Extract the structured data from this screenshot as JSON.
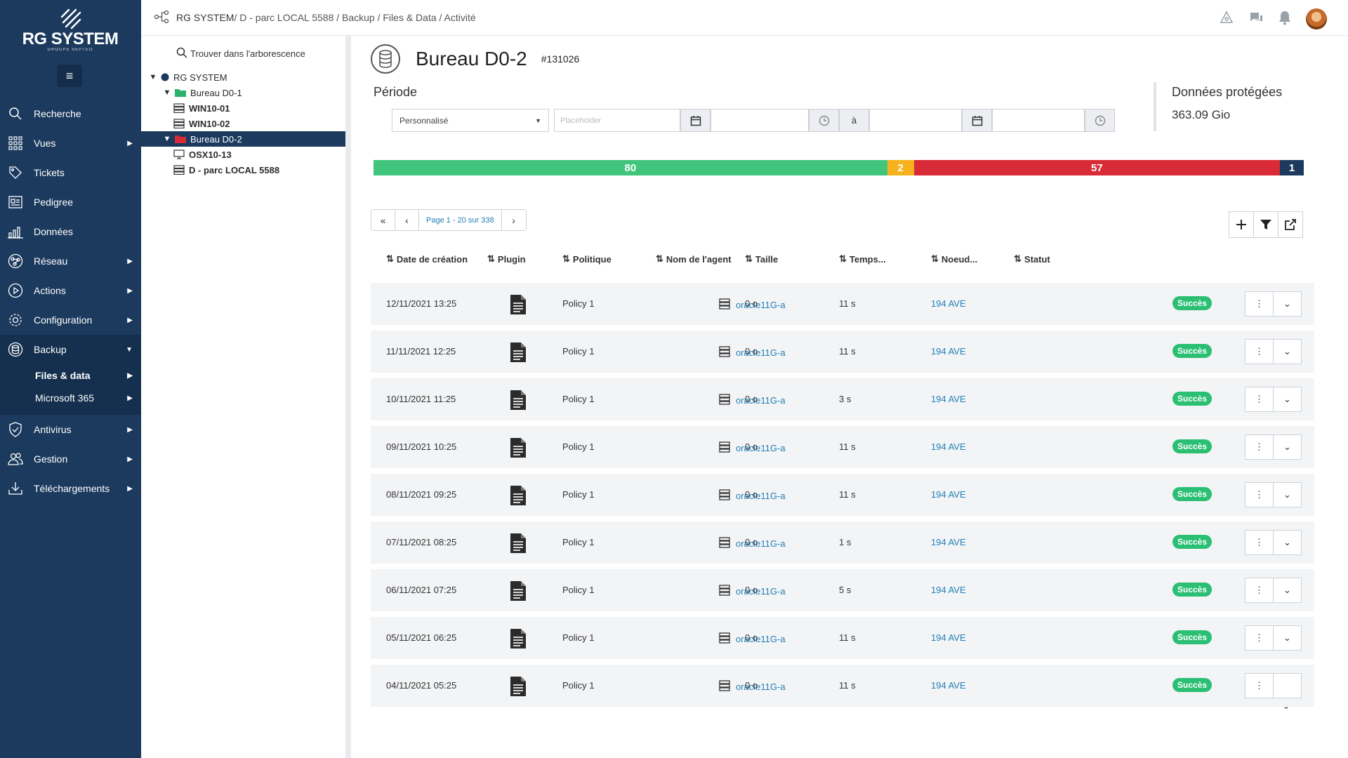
{
  "brand": {
    "name": "RG SYSTEM",
    "sub": "GROUPE SEPTEO"
  },
  "sidebar": {
    "items": [
      {
        "label": "Recherche",
        "icon": "search-icon",
        "caret": false
      },
      {
        "label": "Vues",
        "icon": "grid-icon",
        "caret": true
      },
      {
        "label": "Tickets",
        "icon": "tag-icon",
        "caret": false
      },
      {
        "label": "Pedigree",
        "icon": "id-card-icon",
        "caret": false
      },
      {
        "label": "Données",
        "icon": "bar-chart-icon",
        "caret": false
      },
      {
        "label": "Réseau",
        "icon": "network-icon",
        "caret": true
      },
      {
        "label": "Actions",
        "icon": "play-icon",
        "caret": true
      },
      {
        "label": "Configuration",
        "icon": "gear-icon",
        "caret": true
      },
      {
        "label": "Backup",
        "icon": "database-icon",
        "caret": true
      },
      {
        "label": "Antivirus",
        "icon": "shield-icon",
        "caret": true
      },
      {
        "label": "Gestion",
        "icon": "users-icon",
        "caret": true
      },
      {
        "label": "Téléchargements",
        "icon": "download-icon",
        "caret": true
      }
    ],
    "backup_sub": [
      {
        "label": "Files & data"
      },
      {
        "label": "Microsoft 365"
      }
    ]
  },
  "breadcrumb": {
    "root": "RG SYSTEM",
    "rest": " / D - parc LOCAL 5588 / Backup / Files & Data / Activité"
  },
  "tree": {
    "search_label": "Trouver dans l'arborescence",
    "nodes": [
      {
        "label": "RG SYSTEM"
      },
      {
        "label": "Bureau D0-1"
      },
      {
        "label": "WIN10-01"
      },
      {
        "label": "WIN10-02"
      },
      {
        "label": "Bureau D0-2"
      },
      {
        "label": "OSX10-13"
      },
      {
        "label": "D - parc LOCAL 5588"
      }
    ]
  },
  "header": {
    "title": "Bureau D0-2",
    "id": "#131026"
  },
  "period": {
    "label": "Période",
    "select_value": "Personnalisé",
    "start_placeholder": "Placeholder",
    "separator": "à"
  },
  "protected": {
    "label": "Données protégées",
    "value": "363.09 Gio"
  },
  "status_bar": [
    {
      "value": 80,
      "label": "80",
      "color": "#41c57d"
    },
    {
      "value": 2,
      "label": "2",
      "color": "#f6b21c"
    },
    {
      "value": 57,
      "label": "57",
      "color": "#d92a37"
    },
    {
      "value": 1,
      "label": "1",
      "color": "#1c3a5e"
    }
  ],
  "pager": {
    "label": "Page 1 - 20 sur 338"
  },
  "table": {
    "columns": [
      "Date de création",
      "Plugin",
      "Politique",
      "Nom de l'agent",
      "Taille",
      "Temps...",
      "Noeud...",
      "Statut"
    ],
    "rows": [
      {
        "date": "12/11/2021 13:25",
        "policy": "Policy 1",
        "agent": "oracle11G-a",
        "size": "0 o",
        "time": "11 s",
        "node": "194 AVE",
        "status": "Succès"
      },
      {
        "date": "11/11/2021 12:25",
        "policy": "Policy 1",
        "agent": "oracle11G-a",
        "size": "0 o",
        "time": "11 s",
        "node": "194 AVE",
        "status": "Succès"
      },
      {
        "date": "10/11/2021 11:25",
        "policy": "Policy 1",
        "agent": "oracle11G-a",
        "size": "0 o",
        "time": "3 s",
        "node": "194 AVE",
        "status": "Succès"
      },
      {
        "date": "09/11/2021 10:25",
        "policy": "Policy 1",
        "agent": "oracle11G-a",
        "size": "0 o",
        "time": "11 s",
        "node": "194 AVE",
        "status": "Succès"
      },
      {
        "date": "08/11/2021 09:25",
        "policy": "Policy 1",
        "agent": "oracle11G-a",
        "size": "0 o",
        "time": "11 s",
        "node": "194 AVE",
        "status": "Succès"
      },
      {
        "date": "07/11/2021 08:25",
        "policy": "Policy 1",
        "agent": "oracle11G-a",
        "size": "0 o",
        "time": "1 s",
        "node": "194 AVE",
        "status": "Succès"
      },
      {
        "date": "06/11/2021 07:25",
        "policy": "Policy 1",
        "agent": "oracle11G-a",
        "size": "0 o",
        "time": "5 s",
        "node": "194 AVE",
        "status": "Succès"
      },
      {
        "date": "05/11/2021 06:25",
        "policy": "Policy 1",
        "agent": "oracle11G-a",
        "size": "0 o",
        "time": "11 s",
        "node": "194 AVE",
        "status": "Succès"
      },
      {
        "date": "04/11/2021 05:25",
        "policy": "Policy 1",
        "agent": "oracle11G-a",
        "size": "0 o",
        "time": "11 s",
        "node": "194 AVE",
        "status": "Succès"
      }
    ]
  }
}
